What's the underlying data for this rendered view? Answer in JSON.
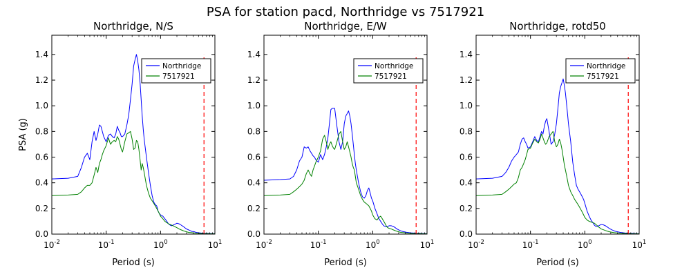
{
  "figure": {
    "title": "PSA for station pacd, Northridge vs 7517921"
  },
  "chart_data": [
    {
      "type": "line",
      "title": "Northridge, N/S",
      "xlabel": "Period (s)",
      "ylabel": "PSA (g)",
      "xscale": "log",
      "xlim": [
        0.01,
        10
      ],
      "ylim": [
        0,
        1.55
      ],
      "x_ticks": [
        "10^-2",
        "10^-1",
        "10^0",
        "10^1"
      ],
      "y_ticks": [
        "0.0",
        "0.2",
        "0.4",
        "0.6",
        "0.8",
        "1.0",
        "1.2",
        "1.4"
      ],
      "legend_position": "top-right",
      "vline": {
        "x": 6.3,
        "color": "#ff0000",
        "style": "dashed"
      },
      "x": [
        0.01,
        0.02,
        0.03,
        0.035,
        0.04,
        0.045,
        0.05,
        0.055,
        0.06,
        0.065,
        0.07,
        0.075,
        0.08,
        0.085,
        0.09,
        0.1,
        0.11,
        0.12,
        0.13,
        0.14,
        0.15,
        0.16,
        0.17,
        0.18,
        0.19,
        0.2,
        0.22,
        0.24,
        0.26,
        0.28,
        0.3,
        0.32,
        0.34,
        0.36,
        0.38,
        0.4,
        0.42,
        0.44,
        0.46,
        0.48,
        0.5,
        0.55,
        0.6,
        0.65,
        0.7,
        0.75,
        0.8,
        0.85,
        0.9,
        0.95,
        1.0,
        1.1,
        1.2,
        1.3,
        1.4,
        1.5,
        1.6,
        1.7,
        1.8,
        1.9,
        2.0,
        2.2,
        2.4,
        2.6,
        2.8,
        3.0,
        3.2,
        3.4,
        3.6,
        3.8,
        4.0,
        4.2,
        4.4,
        4.6,
        4.8,
        5.0,
        5.5,
        6.0,
        6.5,
        7.0,
        7.5,
        8.0,
        8.5,
        9.0,
        9.5,
        10.0
      ],
      "series": [
        {
          "name": "Northridge",
          "color": "#0000ff",
          "values": [
            0.43,
            0.435,
            0.45,
            0.52,
            0.6,
            0.63,
            0.58,
            0.72,
            0.8,
            0.73,
            0.78,
            0.85,
            0.84,
            0.8,
            0.76,
            0.72,
            0.77,
            0.78,
            0.76,
            0.75,
            0.78,
            0.84,
            0.81,
            0.79,
            0.76,
            0.76,
            0.78,
            0.85,
            0.93,
            1.05,
            1.17,
            1.31,
            1.36,
            1.4,
            1.35,
            1.28,
            1.18,
            1.05,
            0.92,
            0.82,
            0.74,
            0.6,
            0.48,
            0.38,
            0.3,
            0.25,
            0.23,
            0.22,
            0.18,
            0.16,
            0.15,
            0.14,
            0.12,
            0.1,
            0.08,
            0.07,
            0.065,
            0.07,
            0.075,
            0.08,
            0.085,
            0.08,
            0.07,
            0.06,
            0.05,
            0.04,
            0.035,
            0.03,
            0.025,
            0.02,
            0.02,
            0.018,
            0.015,
            0.013,
            0.012,
            0.011,
            0.009,
            0.008,
            0.007,
            0.006,
            0.006,
            0.005,
            0.005,
            0.004,
            0.004,
            0.004
          ]
        },
        {
          "name": "7517921",
          "color": "#008000",
          "values": [
            0.3,
            0.305,
            0.31,
            0.33,
            0.36,
            0.38,
            0.38,
            0.4,
            0.46,
            0.52,
            0.48,
            0.55,
            0.58,
            0.62,
            0.65,
            0.69,
            0.75,
            0.7,
            0.72,
            0.73,
            0.72,
            0.76,
            0.74,
            0.7,
            0.66,
            0.64,
            0.72,
            0.78,
            0.79,
            0.8,
            0.74,
            0.66,
            0.67,
            0.73,
            0.72,
            0.66,
            0.58,
            0.5,
            0.55,
            0.52,
            0.48,
            0.38,
            0.32,
            0.28,
            0.26,
            0.24,
            0.22,
            0.2,
            0.18,
            0.16,
            0.14,
            0.12,
            0.1,
            0.09,
            0.08,
            0.075,
            0.07,
            0.065,
            0.06,
            0.055,
            0.05,
            0.04,
            0.033,
            0.027,
            0.022,
            0.018,
            0.015,
            0.013,
            0.012,
            0.011,
            0.01,
            0.009,
            0.008,
            0.007,
            0.007,
            0.006,
            0.005,
            0.005,
            0.004,
            0.004,
            0.004,
            0.003,
            0.003,
            0.003,
            0.003,
            0.003
          ]
        }
      ]
    },
    {
      "type": "line",
      "title": "Northridge, E/W",
      "xlabel": "Period (s)",
      "ylabel": "",
      "xscale": "log",
      "xlim": [
        0.01,
        10
      ],
      "ylim": [
        0,
        1.55
      ],
      "x_ticks": [
        "10^-2",
        "10^-1",
        "10^0",
        "10^1"
      ],
      "y_ticks": [
        "0.0",
        "0.2",
        "0.4",
        "0.6",
        "0.8",
        "1.0",
        "1.2",
        "1.4"
      ],
      "legend_position": "top-right",
      "vline": {
        "x": 6.3,
        "color": "#ff0000",
        "style": "dashed"
      },
      "x": [
        0.01,
        0.02,
        0.03,
        0.035,
        0.04,
        0.045,
        0.05,
        0.055,
        0.06,
        0.065,
        0.07,
        0.075,
        0.08,
        0.085,
        0.09,
        0.1,
        0.11,
        0.12,
        0.13,
        0.14,
        0.15,
        0.16,
        0.17,
        0.18,
        0.19,
        0.2,
        0.22,
        0.24,
        0.26,
        0.28,
        0.3,
        0.32,
        0.34,
        0.36,
        0.38,
        0.4,
        0.42,
        0.44,
        0.46,
        0.48,
        0.5,
        0.55,
        0.6,
        0.65,
        0.7,
        0.75,
        0.8,
        0.85,
        0.9,
        0.95,
        1.0,
        1.1,
        1.2,
        1.3,
        1.4,
        1.5,
        1.6,
        1.7,
        1.8,
        1.9,
        2.0,
        2.2,
        2.4,
        2.6,
        2.8,
        3.0,
        3.2,
        3.4,
        3.6,
        3.8,
        4.0,
        4.2,
        4.4,
        4.6,
        4.8,
        5.0,
        5.5,
        6.0,
        6.5,
        7.0,
        7.5,
        8.0,
        8.5,
        9.0,
        9.5,
        10.0
      ],
      "series": [
        {
          "name": "Northridge",
          "color": "#0000ff",
          "values": [
            0.42,
            0.425,
            0.43,
            0.45,
            0.5,
            0.57,
            0.6,
            0.68,
            0.67,
            0.68,
            0.65,
            0.63,
            0.61,
            0.6,
            0.58,
            0.56,
            0.62,
            0.58,
            0.62,
            0.68,
            0.75,
            0.86,
            0.97,
            0.98,
            0.98,
            0.98,
            0.84,
            0.72,
            0.66,
            0.72,
            0.86,
            0.92,
            0.94,
            0.96,
            0.92,
            0.86,
            0.78,
            0.7,
            0.62,
            0.55,
            0.5,
            0.4,
            0.33,
            0.29,
            0.28,
            0.3,
            0.34,
            0.36,
            0.32,
            0.28,
            0.26,
            0.2,
            0.16,
            0.12,
            0.1,
            0.08,
            0.065,
            0.06,
            0.058,
            0.06,
            0.065,
            0.065,
            0.06,
            0.05,
            0.04,
            0.033,
            0.028,
            0.023,
            0.02,
            0.018,
            0.016,
            0.014,
            0.013,
            0.012,
            0.011,
            0.01,
            0.009,
            0.008,
            0.007,
            0.006,
            0.006,
            0.005,
            0.005,
            0.005,
            0.004,
            0.004
          ]
        },
        {
          "name": "7517921",
          "color": "#008000",
          "values": [
            0.3,
            0.305,
            0.31,
            0.33,
            0.35,
            0.37,
            0.39,
            0.42,
            0.47,
            0.5,
            0.47,
            0.45,
            0.5,
            0.53,
            0.56,
            0.6,
            0.65,
            0.74,
            0.77,
            0.72,
            0.66,
            0.7,
            0.72,
            0.69,
            0.67,
            0.66,
            0.72,
            0.78,
            0.8,
            0.72,
            0.66,
            0.68,
            0.72,
            0.68,
            0.64,
            0.6,
            0.55,
            0.52,
            0.5,
            0.45,
            0.4,
            0.35,
            0.3,
            0.27,
            0.25,
            0.24,
            0.23,
            0.22,
            0.2,
            0.18,
            0.15,
            0.12,
            0.11,
            0.13,
            0.14,
            0.12,
            0.1,
            0.08,
            0.06,
            0.05,
            0.045,
            0.04,
            0.033,
            0.027,
            0.022,
            0.018,
            0.015,
            0.013,
            0.012,
            0.011,
            0.01,
            0.009,
            0.008,
            0.007,
            0.007,
            0.006,
            0.005,
            0.005,
            0.004,
            0.004,
            0.004,
            0.003,
            0.003,
            0.003,
            0.003,
            0.003
          ]
        }
      ]
    },
    {
      "type": "line",
      "title": "Northridge, rotd50",
      "xlabel": "Period (s)",
      "ylabel": "",
      "xscale": "log",
      "xlim": [
        0.01,
        10
      ],
      "ylim": [
        0,
        1.55
      ],
      "x_ticks": [
        "10^-2",
        "10^-1",
        "10^0",
        "10^1"
      ],
      "y_ticks": [
        "0.0",
        "0.2",
        "0.4",
        "0.6",
        "0.8",
        "1.0",
        "1.2",
        "1.4"
      ],
      "legend_position": "top-right",
      "vline": {
        "x": 6.3,
        "color": "#ff0000",
        "style": "dashed"
      },
      "x": [
        0.01,
        0.02,
        0.03,
        0.035,
        0.04,
        0.045,
        0.05,
        0.055,
        0.06,
        0.065,
        0.07,
        0.075,
        0.08,
        0.085,
        0.09,
        0.1,
        0.11,
        0.12,
        0.13,
        0.14,
        0.15,
        0.16,
        0.17,
        0.18,
        0.19,
        0.2,
        0.22,
        0.24,
        0.26,
        0.28,
        0.3,
        0.32,
        0.34,
        0.36,
        0.38,
        0.4,
        0.42,
        0.44,
        0.46,
        0.48,
        0.5,
        0.55,
        0.6,
        0.65,
        0.7,
        0.75,
        0.8,
        0.85,
        0.9,
        0.95,
        1.0,
        1.1,
        1.2,
        1.3,
        1.4,
        1.5,
        1.6,
        1.7,
        1.8,
        1.9,
        2.0,
        2.2,
        2.4,
        2.6,
        2.8,
        3.0,
        3.2,
        3.4,
        3.6,
        3.8,
        4.0,
        4.2,
        4.4,
        4.6,
        4.8,
        5.0,
        5.5,
        6.0,
        6.5,
        7.0,
        7.5,
        8.0,
        8.5,
        9.0,
        9.5,
        10.0
      ],
      "series": [
        {
          "name": "Northridge",
          "color": "#0000ff",
          "values": [
            0.43,
            0.435,
            0.45,
            0.48,
            0.52,
            0.57,
            0.6,
            0.62,
            0.64,
            0.7,
            0.74,
            0.75,
            0.72,
            0.7,
            0.67,
            0.68,
            0.72,
            0.76,
            0.73,
            0.72,
            0.76,
            0.8,
            0.78,
            0.84,
            0.88,
            0.9,
            0.8,
            0.7,
            0.72,
            0.78,
            0.86,
            0.98,
            1.1,
            1.15,
            1.18,
            1.21,
            1.16,
            1.1,
            1.02,
            0.94,
            0.86,
            0.72,
            0.56,
            0.46,
            0.38,
            0.35,
            0.33,
            0.31,
            0.29,
            0.27,
            0.24,
            0.18,
            0.14,
            0.11,
            0.09,
            0.07,
            0.06,
            0.06,
            0.065,
            0.07,
            0.075,
            0.072,
            0.065,
            0.055,
            0.045,
            0.038,
            0.032,
            0.027,
            0.023,
            0.02,
            0.018,
            0.016,
            0.014,
            0.013,
            0.012,
            0.011,
            0.009,
            0.008,
            0.007,
            0.006,
            0.006,
            0.005,
            0.005,
            0.004,
            0.004,
            0.004
          ]
        },
        {
          "name": "7517921",
          "color": "#008000",
          "values": [
            0.3,
            0.305,
            0.31,
            0.33,
            0.35,
            0.37,
            0.39,
            0.4,
            0.44,
            0.5,
            0.52,
            0.55,
            0.58,
            0.62,
            0.66,
            0.67,
            0.71,
            0.74,
            0.72,
            0.71,
            0.74,
            0.78,
            0.75,
            0.72,
            0.7,
            0.71,
            0.76,
            0.78,
            0.8,
            0.72,
            0.68,
            0.7,
            0.74,
            0.71,
            0.66,
            0.6,
            0.54,
            0.5,
            0.46,
            0.42,
            0.38,
            0.33,
            0.3,
            0.27,
            0.25,
            0.23,
            0.21,
            0.19,
            0.17,
            0.15,
            0.13,
            0.11,
            0.1,
            0.095,
            0.09,
            0.085,
            0.075,
            0.065,
            0.055,
            0.048,
            0.04,
            0.034,
            0.028,
            0.023,
            0.019,
            0.016,
            0.014,
            0.012,
            0.011,
            0.01,
            0.009,
            0.008,
            0.007,
            0.007,
            0.006,
            0.006,
            0.005,
            0.004,
            0.004,
            0.004,
            0.003,
            0.003,
            0.003,
            0.003,
            0.003,
            0.003
          ]
        }
      ]
    }
  ]
}
